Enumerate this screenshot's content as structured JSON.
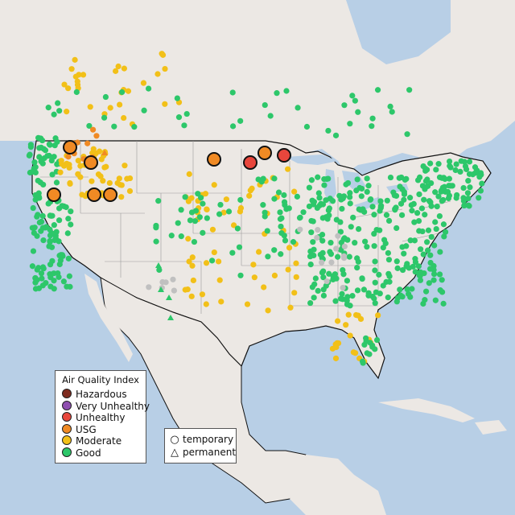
{
  "legend": {
    "title": "Air Quality Index",
    "categories": [
      {
        "label": "Hazardous",
        "color": "#7e2b1f"
      },
      {
        "label": "Very Unhealthy",
        "color": "#8f4fb0"
      },
      {
        "label": "Unhealthy",
        "color": "#e8463c"
      },
      {
        "label": "USG",
        "color": "#f08a24"
      },
      {
        "label": "Moderate",
        "color": "#f2c018"
      },
      {
        "label": "Good",
        "color": "#2dc76a"
      }
    ]
  },
  "type_legend": {
    "items": [
      {
        "label": "temporary",
        "symbol": "circle-icon"
      },
      {
        "label": "permanent",
        "symbol": "triangle-icon"
      }
    ]
  },
  "colors": {
    "ocean": "#b8cfe6",
    "land": "#ece8e4",
    "border": "#111111",
    "state_line": "#9a9a9a",
    "no_data": "#c0c0c0"
  }
}
